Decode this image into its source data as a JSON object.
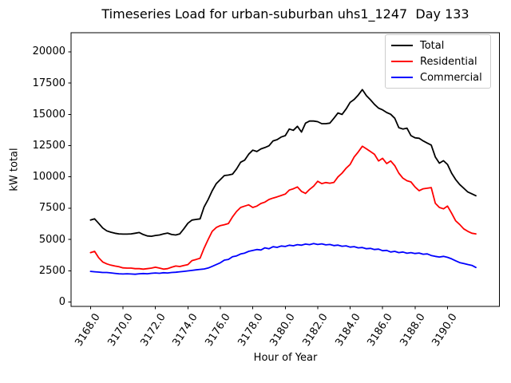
{
  "title": "Timeseries Load for urban-suburban uhs1_1247  Day 133",
  "chart_data": {
    "type": "line",
    "title": "Timeseries Load for urban-suburban uhs1_1247  Day 133",
    "xlabel": "Hour of Year",
    "ylabel": "kW total",
    "grid": false,
    "legend_position": "upper right",
    "xlim": [
      3166.8,
      3193.2
    ],
    "ylim": [
      -350,
      21530
    ],
    "x_tick_labels": [
      "3168.0",
      "3170.0",
      "3172.0",
      "3174.0",
      "3176.0",
      "3178.0",
      "3180.0",
      "3182.0",
      "3184.0",
      "3186.0",
      "3188.0",
      "3190.0"
    ],
    "y_tick_labels": [
      "0",
      "2500",
      "5000",
      "7500",
      "10000",
      "12500",
      "15000",
      "17500",
      "20000"
    ],
    "x": [
      3168.0,
      3168.25,
      3168.5,
      3168.75,
      3169.0,
      3169.25,
      3169.5,
      3169.75,
      3170.0,
      3170.25,
      3170.5,
      3170.75,
      3171.0,
      3171.25,
      3171.5,
      3171.75,
      3172.0,
      3172.25,
      3172.5,
      3172.75,
      3173.0,
      3173.25,
      3173.5,
      3173.75,
      3174.0,
      3174.25,
      3174.5,
      3174.75,
      3175.0,
      3175.25,
      3175.5,
      3175.75,
      3176.0,
      3176.25,
      3176.5,
      3176.75,
      3177.0,
      3177.25,
      3177.5,
      3177.75,
      3178.0,
      3178.25,
      3178.5,
      3178.75,
      3179.0,
      3179.25,
      3179.5,
      3179.75,
      3180.0,
      3180.25,
      3180.5,
      3180.75,
      3181.0,
      3181.25,
      3181.5,
      3181.75,
      3182.0,
      3182.25,
      3182.5,
      3182.75,
      3183.0,
      3183.25,
      3183.5,
      3183.75,
      3184.0,
      3184.25,
      3184.5,
      3184.75,
      3185.0,
      3185.25,
      3185.5,
      3185.75,
      3186.0,
      3186.25,
      3186.5,
      3186.75,
      3187.0,
      3187.25,
      3187.5,
      3187.75,
      3188.0,
      3188.25,
      3188.5,
      3188.75,
      3189.0,
      3189.25,
      3189.5,
      3189.75,
      3190.0,
      3190.25,
      3190.5,
      3190.75,
      3191.0,
      3191.25,
      3191.5,
      3191.75
    ],
    "series": [
      {
        "name": "Total",
        "color": "#000000",
        "values": [
          6550,
          6650,
          6300,
          5920,
          5690,
          5580,
          5500,
          5450,
          5430,
          5430,
          5450,
          5500,
          5560,
          5400,
          5280,
          5260,
          5320,
          5360,
          5450,
          5510,
          5400,
          5360,
          5450,
          5850,
          6300,
          6550,
          6600,
          6650,
          7600,
          8200,
          8900,
          9470,
          9790,
          10110,
          10150,
          10220,
          10640,
          11180,
          11340,
          11820,
          12140,
          12030,
          12240,
          12350,
          12490,
          12880,
          12980,
          13190,
          13300,
          13830,
          13730,
          14050,
          13590,
          14300,
          14470,
          14470,
          14420,
          14260,
          14260,
          14300,
          14690,
          15110,
          15000,
          15430,
          15960,
          16200,
          16550,
          16980,
          16500,
          16170,
          15800,
          15500,
          15360,
          15150,
          15010,
          14690,
          13940,
          13830,
          13900,
          13300,
          13130,
          13090,
          12880,
          12710,
          12550,
          11600,
          11100,
          11300,
          11000,
          10300,
          9800,
          9400,
          9100,
          8800,
          8650,
          8500
        ]
      },
      {
        "name": "Residential",
        "color": "#ff0000",
        "values": [
          3950,
          4050,
          3550,
          3200,
          3050,
          2950,
          2880,
          2820,
          2730,
          2710,
          2710,
          2670,
          2670,
          2630,
          2670,
          2710,
          2780,
          2710,
          2630,
          2670,
          2780,
          2880,
          2840,
          2920,
          2990,
          3310,
          3400,
          3500,
          4300,
          5000,
          5650,
          5960,
          6110,
          6180,
          6280,
          6810,
          7240,
          7560,
          7670,
          7770,
          7560,
          7670,
          7880,
          7990,
          8200,
          8310,
          8410,
          8520,
          8630,
          8950,
          9050,
          9200,
          8840,
          8680,
          9000,
          9260,
          9650,
          9470,
          9550,
          9500,
          9560,
          10000,
          10300,
          10700,
          11000,
          11600,
          12000,
          12450,
          12250,
          12030,
          11810,
          11280,
          11490,
          11070,
          11280,
          10900,
          10300,
          9900,
          9700,
          9600,
          9200,
          8900,
          9050,
          9100,
          9150,
          7900,
          7560,
          7450,
          7670,
          7100,
          6500,
          6200,
          5850,
          5650,
          5500,
          5450
        ]
      },
      {
        "name": "Commercial",
        "color": "#0000ff",
        "values": [
          2450,
          2420,
          2390,
          2360,
          2360,
          2330,
          2290,
          2260,
          2240,
          2260,
          2240,
          2220,
          2260,
          2280,
          2260,
          2300,
          2320,
          2300,
          2340,
          2320,
          2360,
          2380,
          2420,
          2450,
          2490,
          2530,
          2570,
          2610,
          2640,
          2720,
          2850,
          2990,
          3140,
          3350,
          3410,
          3620,
          3690,
          3840,
          3910,
          4050,
          4120,
          4200,
          4160,
          4330,
          4260,
          4420,
          4370,
          4480,
          4440,
          4540,
          4500,
          4590,
          4540,
          4630,
          4590,
          4670,
          4600,
          4650,
          4570,
          4600,
          4510,
          4550,
          4460,
          4490,
          4390,
          4430,
          4330,
          4360,
          4260,
          4290,
          4200,
          4230,
          4100,
          4130,
          4000,
          4050,
          3950,
          4000,
          3900,
          3950,
          3880,
          3920,
          3820,
          3850,
          3720,
          3650,
          3600,
          3650,
          3570,
          3450,
          3300,
          3150,
          3080,
          3000,
          2930,
          2760
        ]
      }
    ]
  }
}
